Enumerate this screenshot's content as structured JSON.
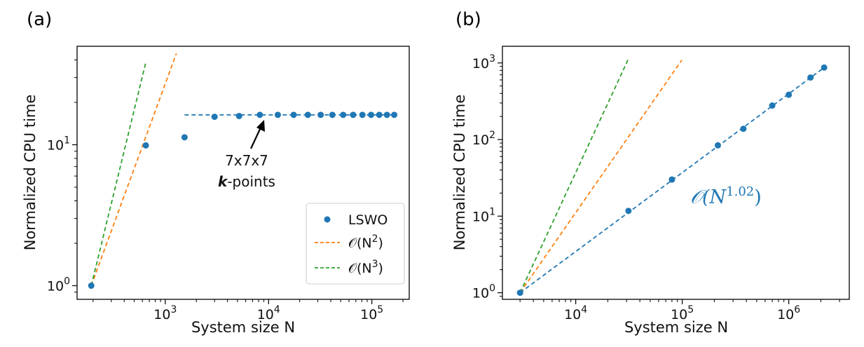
{
  "colors": {
    "blue": "#1f77b4",
    "orange": "#ff7f0e",
    "green": "#2ca02c",
    "frame": "#000000"
  },
  "chart_data": [
    {
      "type": "scatter",
      "panel_label": "(a)",
      "xlabel": "System size N",
      "ylabel": "Normalized CPU time",
      "xscale": "log",
      "yscale": "log",
      "xlim": [
        140,
        230000
      ],
      "ylim": [
        0.8,
        50
      ],
      "xticks": [
        {
          "value": 1000,
          "base": "10",
          "exp": "3"
        },
        {
          "value": 10000,
          "base": "10",
          "exp": "4"
        },
        {
          "value": 100000,
          "base": "10",
          "exp": "5"
        }
      ],
      "yticks": [
        {
          "value": 1,
          "base": "10",
          "exp": "0"
        },
        {
          "value": 10,
          "base": "10",
          "exp": "1"
        }
      ],
      "series": [
        {
          "name": "LSWO",
          "kind": "points",
          "color": "blue",
          "x": [
            192,
            648,
            1536,
            3000,
            5184,
            8232,
            12288,
            17496,
            24000,
            31944,
            41472,
            52728,
            65856,
            81000,
            98304,
            117912,
            139968,
            164616
          ],
          "y": [
            1.0,
            9.9,
            11.3,
            15.8,
            16.0,
            16.3,
            16.3,
            16.3,
            16.3,
            16.3,
            16.3,
            16.3,
            16.3,
            16.3,
            16.3,
            16.3,
            16.3,
            16.3
          ]
        },
        {
          "name": "7x7x7 plateau",
          "kind": "line",
          "color": "blue",
          "x": [
            1536,
            164616
          ],
          "y": [
            16.3,
            16.3
          ]
        },
        {
          "name": "𝒪(N²)",
          "kind": "line",
          "color": "orange",
          "x": [
            192,
            1280
          ],
          "y": [
            1.0,
            44.4
          ]
        },
        {
          "name": "𝒪(N³)",
          "kind": "line",
          "color": "green",
          "x": [
            192,
            645
          ],
          "y": [
            1.0,
            37.9
          ]
        }
      ],
      "annotation": {
        "line1": "7x7x7",
        "line2_bold": "k",
        "line2_rest": "-points",
        "arrow_to": [
          8232,
          16.3
        ]
      },
      "legend": {
        "position": "lower-right",
        "entries": [
          {
            "label": "LSWO",
            "marker": "point",
            "color": "blue"
          },
          {
            "prefix": "𝒪(N",
            "sup": "2",
            "suffix": ")",
            "marker": "dash",
            "color": "orange"
          },
          {
            "prefix": "𝒪(N",
            "sup": "3",
            "suffix": ")",
            "marker": "dash",
            "color": "green"
          }
        ]
      }
    },
    {
      "type": "scatter",
      "panel_label": "(b)",
      "xlabel": "System size N",
      "ylabel": "Normalized CPU time",
      "xscale": "log",
      "yscale": "log",
      "xlim": [
        2050,
        3700000
      ],
      "ylim": [
        0.82,
        1650
      ],
      "xticks": [
        {
          "value": 10000,
          "base": "10",
          "exp": "4"
        },
        {
          "value": 100000,
          "base": "10",
          "exp": "5"
        },
        {
          "value": 1000000,
          "base": "10",
          "exp": "6"
        }
      ],
      "yticks": [
        {
          "value": 1,
          "base": "10",
          "exp": "0"
        },
        {
          "value": 10,
          "base": "10",
          "exp": "1"
        },
        {
          "value": 100,
          "base": "10",
          "exp": "2"
        },
        {
          "value": 1000,
          "base": "10",
          "exp": "3"
        }
      ],
      "series": [
        {
          "name": "LSWO",
          "kind": "points",
          "color": "blue",
          "x": [
            3000,
            31250,
            80000,
            216000,
            375000,
            700000,
            1000000,
            1600000,
            2150000
          ],
          "y": [
            1.0,
            11.7,
            30.0,
            84.0,
            138.0,
            278.0,
            384.0,
            645.0,
            870.0
          ]
        },
        {
          "name": "LSWO fit",
          "kind": "line",
          "color": "blue",
          "x": [
            3000,
            2150000
          ],
          "y": [
            1.0,
            870.0
          ]
        },
        {
          "name": "𝒪(N²)",
          "kind": "line",
          "color": "orange",
          "x": [
            3000,
            99000
          ],
          "y": [
            1.0,
            1089
          ]
        },
        {
          "name": "𝒪(N³)",
          "kind": "line",
          "color": "green",
          "x": [
            3000,
            31000
          ],
          "y": [
            1.0,
            1104
          ]
        }
      ],
      "annotation": {
        "prefix": "𝒪(N",
        "sup": "1.02",
        "suffix": ")"
      }
    }
  ]
}
